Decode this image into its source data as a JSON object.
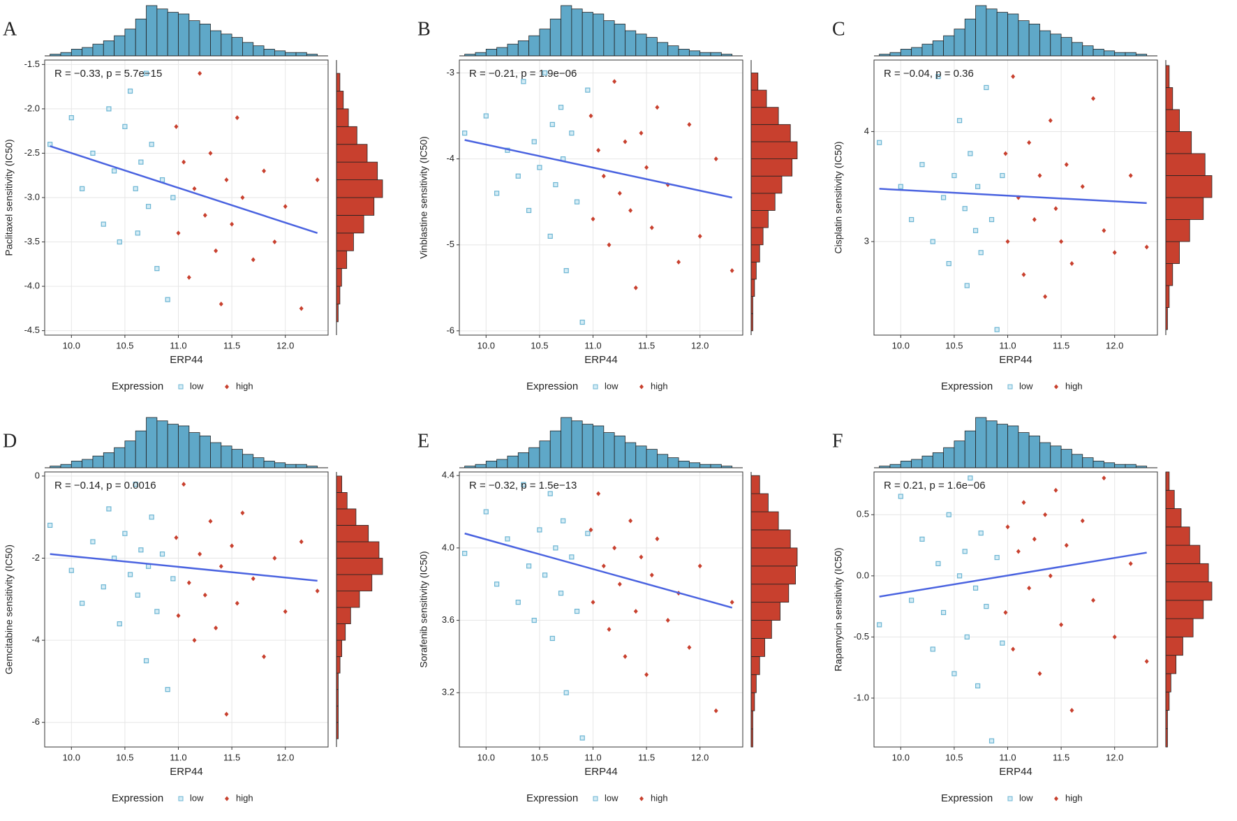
{
  "expression_hist": {
    "bins": [
      9.8,
      9.9,
      10.0,
      10.1,
      10.2,
      10.3,
      10.4,
      10.5,
      10.6,
      10.7,
      10.8,
      10.9,
      11.0,
      11.1,
      11.2,
      11.3,
      11.4,
      11.5,
      11.6,
      11.7,
      11.8,
      11.9,
      12.0,
      12.1,
      12.2,
      12.3
    ],
    "counts": [
      1,
      2,
      4,
      5,
      7,
      9,
      12,
      16,
      22,
      30,
      28,
      26,
      25,
      21,
      19,
      15,
      13,
      11,
      8,
      6,
      4,
      3,
      2,
      2,
      1
    ],
    "color": "#5fa8c8"
  },
  "chart_data": [
    {
      "type": "scatter",
      "panel": "A",
      "annotation": "R = −0.33, p = 5.7e−15",
      "x_label": "ERP44",
      "y_label": "Paclitaxel sensitivity (IC50)",
      "legend_title": "Expression",
      "xlim": [
        9.75,
        12.4
      ],
      "xticks": [
        {
          "value": 10,
          "label": "10.0"
        },
        10.5,
        {
          "value": 11,
          "label": "11.0"
        },
        11.5,
        {
          "value": 12,
          "label": "12.0"
        }
      ],
      "ylim": [
        -4.55,
        -1.45
      ],
      "yticks": [
        -4.5,
        {
          "value": -4,
          "label": "-4.0"
        },
        -3.5,
        {
          "value": -3,
          "label": "-3.0"
        },
        -2.5,
        {
          "value": -2,
          "label": "-2.0"
        },
        -1.5
      ],
      "series": [
        {
          "name": "low",
          "color": "#6bb5d3",
          "x": [
            9.8,
            10.0,
            10.1,
            10.2,
            10.3,
            10.35,
            10.4,
            10.45,
            10.5,
            10.55,
            10.6,
            10.62,
            10.65,
            10.7,
            10.72,
            10.75,
            10.8,
            10.85,
            10.9,
            10.95
          ],
          "values": [
            -2.4,
            -2.1,
            -2.9,
            -2.5,
            -3.3,
            -2.0,
            -2.7,
            -3.5,
            -2.2,
            -1.8,
            -2.9,
            -3.4,
            -2.6,
            -1.6,
            -3.1,
            -2.4,
            -3.8,
            -2.8,
            -4.15,
            -3.0
          ]
        },
        {
          "name": "high",
          "color": "#c8402e",
          "x": [
            10.98,
            11.0,
            11.05,
            11.1,
            11.15,
            11.2,
            11.25,
            11.3,
            11.35,
            11.4,
            11.45,
            11.5,
            11.55,
            11.6,
            11.7,
            11.8,
            11.9,
            12.0,
            12.15,
            12.3
          ],
          "values": [
            -2.2,
            -3.4,
            -2.6,
            -3.9,
            -2.9,
            -1.6,
            -3.2,
            -2.5,
            -3.6,
            -4.2,
            -2.8,
            -3.3,
            -2.1,
            -3.0,
            -3.7,
            -2.7,
            -3.5,
            -3.1,
            -4.25,
            -2.8
          ]
        }
      ],
      "fit": {
        "color": "#4a63e0",
        "x": [
          9.8,
          12.3
        ],
        "y": [
          -2.42,
          -3.4
        ]
      },
      "y_hist": {
        "color": "#c8402e",
        "bins": [
          -4.4,
          -4.2,
          -4.0,
          -3.8,
          -3.6,
          -3.4,
          -3.2,
          -3.0,
          -2.8,
          -2.6,
          -2.4,
          -2.2,
          -2.0,
          -1.8,
          -1.6
        ],
        "counts": [
          1,
          2,
          3,
          6,
          10,
          16,
          22,
          27,
          24,
          18,
          12,
          7,
          4,
          2
        ]
      }
    },
    {
      "type": "scatter",
      "panel": "B",
      "annotation": "R = −0.21, p = 1.9e−06",
      "x_label": "ERP44",
      "y_label": "Vinblastine sensitivity (IC50)",
      "legend_title": "Expression",
      "xlim": [
        9.75,
        12.4
      ],
      "xticks": [
        {
          "value": 10,
          "label": "10.0"
        },
        10.5,
        {
          "value": 11,
          "label": "11.0"
        },
        11.5,
        {
          "value": 12,
          "label": "12.0"
        }
      ],
      "ylim": [
        -6.05,
        -2.85
      ],
      "yticks": [
        -6,
        -5,
        -4,
        -3
      ],
      "series": [
        {
          "name": "low",
          "color": "#6bb5d3",
          "x": [
            9.8,
            10.0,
            10.1,
            10.2,
            10.3,
            10.35,
            10.4,
            10.45,
            10.5,
            10.55,
            10.6,
            10.62,
            10.65,
            10.7,
            10.72,
            10.75,
            10.8,
            10.85,
            10.9,
            10.95
          ],
          "values": [
            -3.7,
            -3.5,
            -4.4,
            -3.9,
            -4.2,
            -3.1,
            -4.6,
            -3.8,
            -4.1,
            -3.0,
            -4.9,
            -3.6,
            -4.3,
            -3.4,
            -4.0,
            -5.3,
            -3.7,
            -4.5,
            -5.9,
            -3.2
          ]
        },
        {
          "name": "high",
          "color": "#c8402e",
          "x": [
            10.98,
            11.0,
            11.05,
            11.1,
            11.15,
            11.2,
            11.25,
            11.3,
            11.35,
            11.4,
            11.45,
            11.5,
            11.55,
            11.6,
            11.7,
            11.8,
            11.9,
            12.0,
            12.15,
            12.3
          ],
          "values": [
            -3.5,
            -4.7,
            -3.9,
            -4.2,
            -5.0,
            -3.1,
            -4.4,
            -3.8,
            -4.6,
            -5.5,
            -3.7,
            -4.1,
            -4.8,
            -3.4,
            -4.3,
            -5.2,
            -3.6,
            -4.9,
            -4.0,
            -5.3
          ]
        }
      ],
      "fit": {
        "color": "#4a63e0",
        "x": [
          9.8,
          12.3
        ],
        "y": [
          -3.78,
          -4.45
        ]
      },
      "y_hist": {
        "color": "#c8402e",
        "bins": [
          -6.0,
          -5.8,
          -5.6,
          -5.4,
          -5.2,
          -5.0,
          -4.8,
          -4.6,
          -4.4,
          -4.2,
          -4.0,
          -3.8,
          -3.6,
          -3.4,
          -3.2,
          -3.0
        ],
        "counts": [
          1,
          1,
          2,
          3,
          5,
          7,
          10,
          14,
          18,
          24,
          27,
          23,
          16,
          9,
          4
        ]
      }
    },
    {
      "type": "scatter",
      "panel": "C",
      "annotation": "R = −0.04, p = 0.36",
      "x_label": "ERP44",
      "y_label": "Cisplatin sensitivity (IC50)",
      "legend_title": "Expression",
      "xlim": [
        9.75,
        12.4
      ],
      "xticks": [
        {
          "value": 10,
          "label": "10.0"
        },
        10.5,
        {
          "value": 11,
          "label": "11.0"
        },
        11.5,
        {
          "value": 12,
          "label": "12.0"
        }
      ],
      "ylim": [
        2.15,
        4.65
      ],
      "yticks": [
        3,
        4
      ],
      "series": [
        {
          "name": "low",
          "color": "#6bb5d3",
          "x": [
            9.8,
            10.0,
            10.1,
            10.2,
            10.3,
            10.35,
            10.4,
            10.45,
            10.5,
            10.55,
            10.6,
            10.62,
            10.65,
            10.7,
            10.72,
            10.75,
            10.8,
            10.85,
            10.9,
            10.95
          ],
          "values": [
            3.9,
            3.5,
            3.2,
            3.7,
            3.0,
            4.5,
            3.4,
            2.8,
            3.6,
            4.1,
            3.3,
            2.6,
            3.8,
            3.1,
            3.5,
            2.9,
            4.4,
            3.2,
            2.2,
            3.6
          ]
        },
        {
          "name": "high",
          "color": "#c8402e",
          "x": [
            10.98,
            11.0,
            11.05,
            11.1,
            11.15,
            11.2,
            11.25,
            11.3,
            11.35,
            11.4,
            11.45,
            11.5,
            11.55,
            11.6,
            11.7,
            11.8,
            11.9,
            12.0,
            12.15,
            12.3
          ],
          "values": [
            3.8,
            3.0,
            4.5,
            3.4,
            2.7,
            3.9,
            3.2,
            3.6,
            2.5,
            4.1,
            3.3,
            3.0,
            3.7,
            2.8,
            3.5,
            4.3,
            3.1,
            2.9,
            3.6,
            2.95
          ]
        }
      ],
      "fit": {
        "color": "#4a63e0",
        "x": [
          9.8,
          12.3
        ],
        "y": [
          3.48,
          3.35
        ]
      },
      "y_hist": {
        "color": "#c8402e",
        "bins": [
          2.2,
          2.4,
          2.6,
          2.8,
          3.0,
          3.2,
          3.4,
          3.6,
          3.8,
          4.0,
          4.2,
          4.4,
          4.6
        ],
        "counts": [
          1,
          2,
          4,
          8,
          14,
          22,
          27,
          23,
          15,
          8,
          4,
          2
        ]
      }
    },
    {
      "type": "scatter",
      "panel": "D",
      "annotation": "R = −0.14, p = 0.0016",
      "x_label": "ERP44",
      "y_label": "Gemcitabine sensitivity (IC50)",
      "legend_title": "Expression",
      "xlim": [
        9.75,
        12.4
      ],
      "xticks": [
        {
          "value": 10,
          "label": "10.0"
        },
        10.5,
        {
          "value": 11,
          "label": "11.0"
        },
        11.5,
        {
          "value": 12,
          "label": "12.0"
        }
      ],
      "ylim": [
        -6.6,
        0.1
      ],
      "yticks": [
        -6,
        -4,
        -2,
        0
      ],
      "series": [
        {
          "name": "low",
          "color": "#6bb5d3",
          "x": [
            9.8,
            10.0,
            10.1,
            10.2,
            10.3,
            10.35,
            10.4,
            10.45,
            10.5,
            10.55,
            10.6,
            10.62,
            10.65,
            10.7,
            10.72,
            10.75,
            10.8,
            10.85,
            10.9,
            10.95
          ],
          "values": [
            -1.2,
            -2.3,
            -3.1,
            -1.6,
            -2.7,
            -0.8,
            -2.0,
            -3.6,
            -1.4,
            -2.4,
            -0.2,
            -2.9,
            -1.8,
            -4.5,
            -2.2,
            -1.0,
            -3.3,
            -1.9,
            -5.2,
            -2.5
          ]
        },
        {
          "name": "high",
          "color": "#c8402e",
          "x": [
            10.98,
            11.0,
            11.05,
            11.1,
            11.15,
            11.2,
            11.25,
            11.3,
            11.35,
            11.4,
            11.45,
            11.5,
            11.55,
            11.6,
            11.7,
            11.8,
            11.9,
            12.0,
            12.15,
            12.3
          ],
          "values": [
            -1.5,
            -3.4,
            -0.2,
            -2.6,
            -4.0,
            -1.9,
            -2.9,
            -1.1,
            -3.7,
            -2.2,
            -5.8,
            -1.7,
            -3.1,
            -0.9,
            -2.5,
            -4.4,
            -2.0,
            -3.3,
            -1.6,
            -2.8
          ]
        }
      ],
      "fit": {
        "color": "#4a63e0",
        "x": [
          9.8,
          12.3
        ],
        "y": [
          -1.9,
          -2.55
        ]
      },
      "y_hist": {
        "color": "#c8402e",
        "bins": [
          -6.4,
          -6.0,
          -5.6,
          -5.2,
          -4.8,
          -4.4,
          -4.0,
          -3.6,
          -3.2,
          -2.8,
          -2.4,
          -2.0,
          -1.6,
          -1.2,
          -0.8,
          -0.4,
          0
        ],
        "counts": [
          1,
          1,
          1,
          1,
          2,
          3,
          5,
          8,
          13,
          20,
          26,
          24,
          18,
          11,
          6,
          3
        ]
      }
    },
    {
      "type": "scatter",
      "panel": "E",
      "annotation": "R = −0.32, p = 1.5e−13",
      "x_label": "ERP44",
      "y_label": "Sorafenib sensitivity (IC50)",
      "legend_title": "Expression",
      "xlim": [
        9.75,
        12.4
      ],
      "xticks": [
        {
          "value": 10,
          "label": "10.0"
        },
        10.5,
        {
          "value": 11,
          "label": "11.0"
        },
        11.5,
        {
          "value": 12,
          "label": "12.0"
        }
      ],
      "ylim": [
        2.9,
        4.42
      ],
      "yticks": [
        3.2,
        3.6,
        {
          "value": 4,
          "label": "4.0"
        },
        4.4
      ],
      "series": [
        {
          "name": "low",
          "color": "#6bb5d3",
          "x": [
            9.8,
            10.0,
            10.1,
            10.2,
            10.3,
            10.35,
            10.4,
            10.45,
            10.5,
            10.55,
            10.6,
            10.62,
            10.65,
            10.7,
            10.72,
            10.75,
            10.8,
            10.85,
            10.9,
            10.95
          ],
          "values": [
            3.97,
            4.2,
            3.8,
            4.05,
            3.7,
            4.35,
            3.9,
            3.6,
            4.1,
            3.85,
            4.3,
            3.5,
            4.0,
            3.75,
            4.15,
            3.2,
            3.95,
            3.65,
            2.95,
            4.08
          ]
        },
        {
          "name": "high",
          "color": "#c8402e",
          "x": [
            10.98,
            11.0,
            11.05,
            11.1,
            11.15,
            11.2,
            11.25,
            11.3,
            11.35,
            11.4,
            11.45,
            11.5,
            11.55,
            11.6,
            11.7,
            11.8,
            11.9,
            12.0,
            12.15,
            12.3
          ],
          "values": [
            4.1,
            3.7,
            4.3,
            3.9,
            3.55,
            4.0,
            3.8,
            3.4,
            4.15,
            3.65,
            3.95,
            3.3,
            3.85,
            4.05,
            3.6,
            3.75,
            3.45,
            3.9,
            3.1,
            3.7
          ]
        }
      ],
      "fit": {
        "color": "#4a63e0",
        "x": [
          9.8,
          12.3
        ],
        "y": [
          4.08,
          3.67
        ]
      },
      "y_hist": {
        "color": "#c8402e",
        "bins": [
          2.9,
          3.0,
          3.1,
          3.2,
          3.3,
          3.4,
          3.5,
          3.6,
          3.7,
          3.8,
          3.9,
          4.0,
          4.1,
          4.2,
          4.3,
          4.4
        ],
        "counts": [
          1,
          1,
          2,
          3,
          5,
          8,
          12,
          17,
          22,
          26,
          27,
          23,
          16,
          10,
          5
        ]
      }
    },
    {
      "type": "scatter",
      "panel": "F",
      "annotation": "R = 0.21, p = 1.6e−06",
      "x_label": "ERP44",
      "y_label": "Rapamycin sensitivity (IC50)",
      "legend_title": "Expression",
      "xlim": [
        9.75,
        12.4
      ],
      "xticks": [
        {
          "value": 10,
          "label": "10.0"
        },
        10.5,
        {
          "value": 11,
          "label": "11.0"
        },
        11.5,
        {
          "value": 12,
          "label": "12.0"
        }
      ],
      "ylim": [
        -1.4,
        0.85
      ],
      "yticks": [
        {
          "value": -1,
          "label": "-1.0"
        },
        -0.5,
        {
          "value": 0,
          "label": "0.0"
        },
        0.5
      ],
      "series": [
        {
          "name": "low",
          "color": "#6bb5d3",
          "x": [
            9.8,
            10.0,
            10.1,
            10.2,
            10.3,
            10.35,
            10.4,
            10.45,
            10.5,
            10.55,
            10.6,
            10.62,
            10.65,
            10.7,
            10.72,
            10.75,
            10.8,
            10.85,
            10.9,
            10.95
          ],
          "values": [
            -0.4,
            0.65,
            -0.2,
            0.3,
            -0.6,
            0.1,
            -0.3,
            0.5,
            -0.8,
            0.0,
            0.2,
            -0.5,
            0.8,
            -0.1,
            -0.9,
            0.35,
            -0.25,
            -1.35,
            0.15,
            -0.55
          ]
        },
        {
          "name": "high",
          "color": "#c8402e",
          "x": [
            10.98,
            11.0,
            11.05,
            11.1,
            11.15,
            11.2,
            11.25,
            11.3,
            11.35,
            11.4,
            11.45,
            11.5,
            11.55,
            11.6,
            11.7,
            11.8,
            11.9,
            12.0,
            12.15,
            12.3
          ],
          "values": [
            -0.3,
            0.4,
            -0.6,
            0.2,
            0.6,
            -0.1,
            0.3,
            -0.8,
            0.5,
            0.0,
            0.7,
            -0.4,
            0.25,
            -1.1,
            0.45,
            -0.2,
            0.8,
            -0.5,
            0.1,
            -0.7
          ]
        }
      ],
      "fit": {
        "color": "#4a63e0",
        "x": [
          9.8,
          12.3
        ],
        "y": [
          -0.17,
          0.19
        ]
      },
      "y_hist": {
        "color": "#c8402e",
        "bins": [
          -1.4,
          -1.25,
          -1.1,
          -0.95,
          -0.8,
          -0.65,
          -0.5,
          -0.35,
          -0.2,
          -0.05,
          0.1,
          0.25,
          0.4,
          0.55,
          0.7,
          0.85
        ],
        "counts": [
          1,
          1,
          2,
          3,
          6,
          10,
          16,
          22,
          27,
          25,
          20,
          14,
          9,
          5,
          2
        ]
      }
    }
  ]
}
